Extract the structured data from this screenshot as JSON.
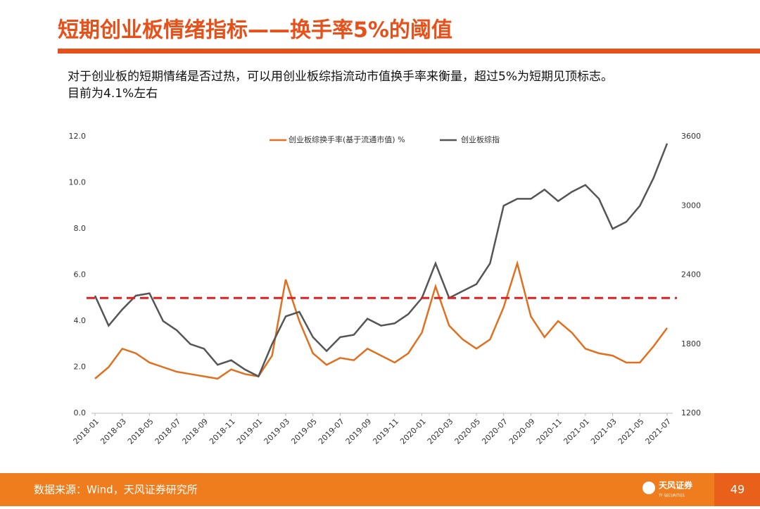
{
  "header": {
    "title": "短期创业板情绪指标——换手率5%的阈值"
  },
  "text": {
    "lines": [
      "对于创业板的短期情绪是否过热，可以用创业板综指流动市值换手率来衡量，超过5%为短期见顶标志。",
      "目前为4.1%左右"
    ]
  },
  "chart_data": {
    "type": "line",
    "categories": [
      "2018-01",
      null,
      "2018-03",
      null,
      "2018-05",
      null,
      "2018-07",
      null,
      "2018-09",
      null,
      "2018-11",
      null,
      "2019-01",
      null,
      "2019-03",
      null,
      "2019-05",
      null,
      "2019-07",
      null,
      "2019-09",
      null,
      "2019-11",
      null,
      "2020-01",
      null,
      "2020-03",
      null,
      "2020-05",
      null,
      "2020-07",
      null,
      "2020-09",
      null,
      "2020-11",
      null,
      "2021-01",
      null,
      "2021-03",
      null,
      "2021-05",
      null,
      "2021-07"
    ],
    "series": [
      {
        "name": "创业板综换手率(基于流通市值) %",
        "color": "#e07020",
        "axis": "y",
        "values": [
          1.5,
          2.0,
          2.8,
          2.6,
          2.2,
          2.0,
          1.8,
          1.7,
          1.6,
          1.5,
          1.9,
          1.7,
          1.6,
          2.5,
          5.8,
          4.0,
          2.6,
          2.1,
          2.4,
          2.3,
          2.8,
          2.5,
          2.2,
          2.6,
          3.5,
          5.5,
          3.8,
          3.2,
          2.8,
          3.2,
          4.6,
          6.5,
          4.2,
          3.3,
          4.0,
          3.5,
          2.8,
          2.6,
          2.5,
          2.2,
          2.2,
          2.9,
          3.7
        ]
      },
      {
        "name": "创业板综指",
        "color": "#555555",
        "axis": "y2",
        "values": [
          2220,
          1960,
          2100,
          2220,
          2240,
          2000,
          1920,
          1800,
          1760,
          1620,
          1660,
          1580,
          1520,
          1800,
          2040,
          2080,
          1860,
          1740,
          1860,
          1880,
          2020,
          1960,
          1980,
          2060,
          2200,
          2500,
          2200,
          2260,
          2320,
          2500,
          3000,
          3060,
          3060,
          3140,
          3040,
          3120,
          3180,
          3060,
          2800,
          2860,
          3000,
          3240,
          3540
        ]
      }
    ],
    "ylim": [
      0,
      12
    ],
    "yticks": [
      {
        "value": 0,
        "label": "0.0"
      },
      {
        "value": 2,
        "label": "2.0"
      },
      {
        "value": 4,
        "label": "4.0"
      },
      {
        "value": 6,
        "label": "6.0"
      },
      {
        "value": 8,
        "label": "8.0"
      },
      {
        "value": 10,
        "label": "10.0"
      },
      {
        "value": 12,
        "label": "12.0"
      }
    ],
    "y2lim": [
      1200,
      3600
    ],
    "y2ticks": [
      1200,
      1800,
      2400,
      3000,
      3600
    ],
    "reference_line": {
      "value": 5,
      "color": "#e02020"
    }
  },
  "footer": {
    "source": "数据来源：Wind，天风证券研究所",
    "logo": "天风证券",
    "logo_sub": "TF SECURITIES",
    "page": "49"
  }
}
